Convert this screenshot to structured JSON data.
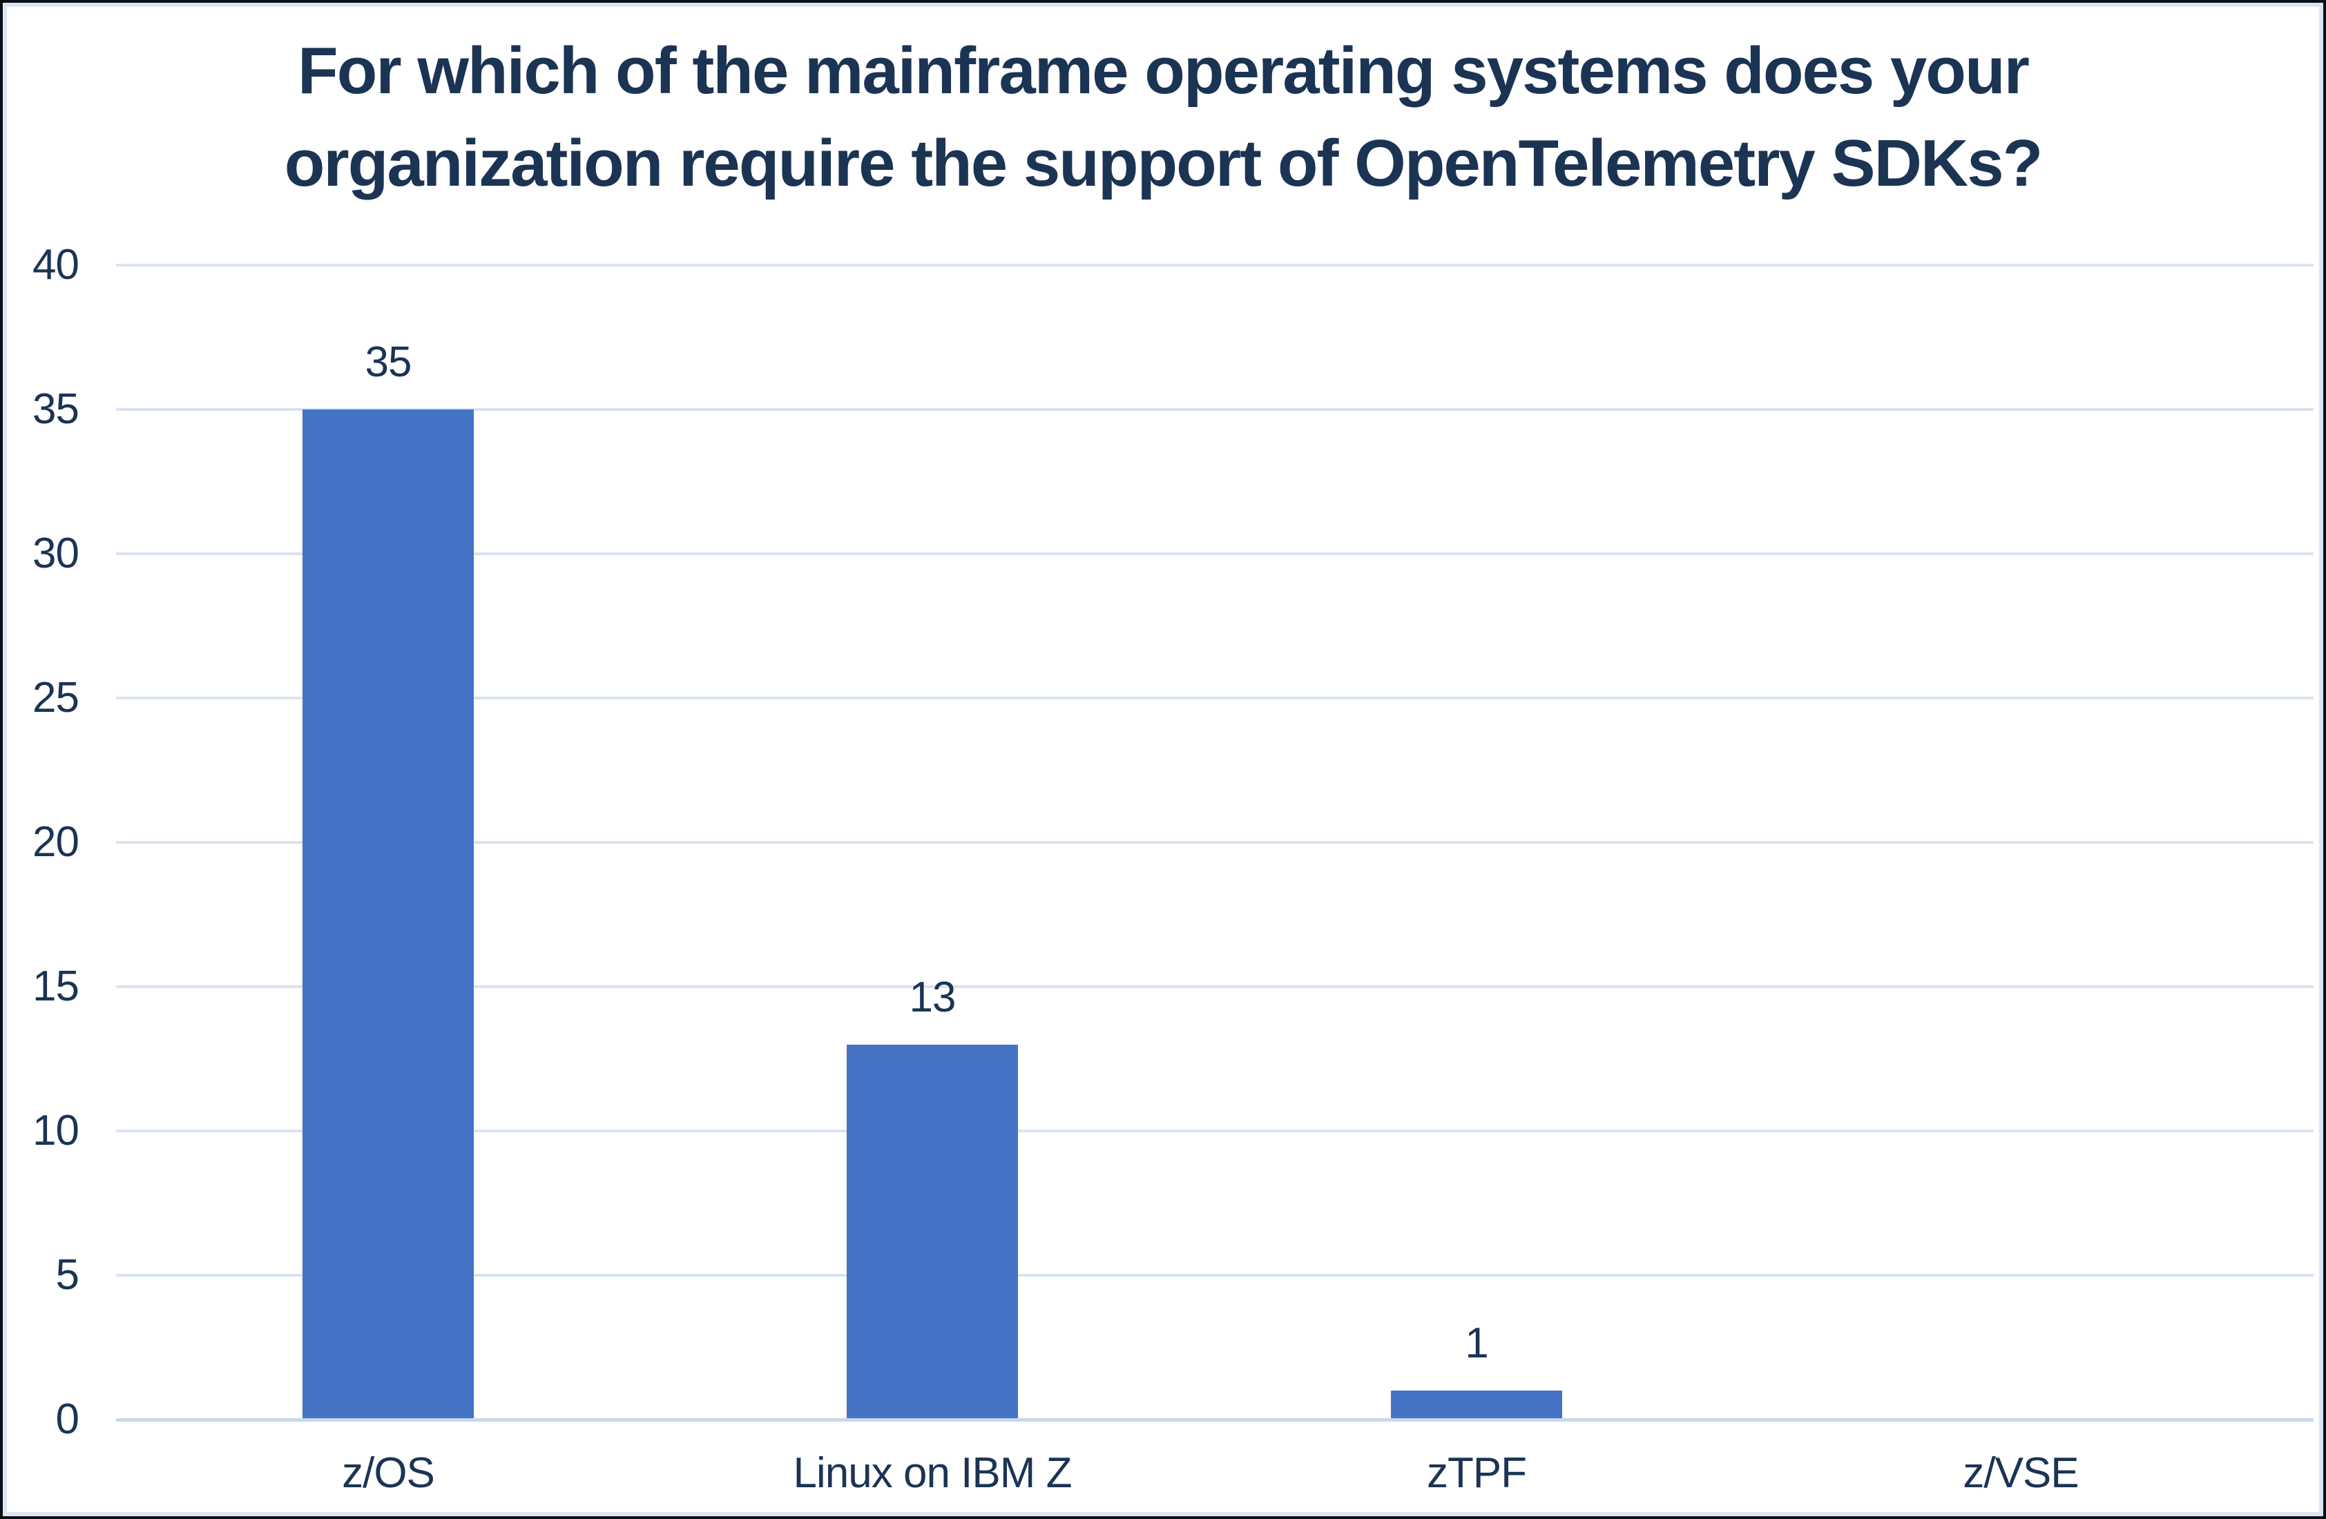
{
  "frame": {
    "outer_border_color": "#0B0E13",
    "inner_border_color": "#D8E5F5",
    "background": "#FFFFFF"
  },
  "chart_data": {
    "type": "bar",
    "title": "For which of the mainframe operating systems does your organization require the support of OpenTelemetry SDKs?",
    "title_lines": [
      "For which of the mainframe operating systems does your",
      "organization require the support of OpenTelemetry SDKs?"
    ],
    "categories": [
      "z/OS",
      "Linux on IBM Z",
      "zTPF",
      "z/VSE"
    ],
    "values": [
      35,
      13,
      1,
      0
    ],
    "data_labels": [
      "35",
      "13",
      "1",
      ""
    ],
    "xlabel": "",
    "ylabel": "",
    "ylim": [
      0,
      40
    ],
    "yticks": [
      0,
      5,
      10,
      15,
      20,
      25,
      30,
      35,
      40
    ],
    "grid": true,
    "legend_position": "none",
    "bar_color": "#4473C6",
    "text_color": "#1B3454",
    "gridline_color": "#D9E3F3",
    "baseline_color": "#C7D8EE"
  }
}
